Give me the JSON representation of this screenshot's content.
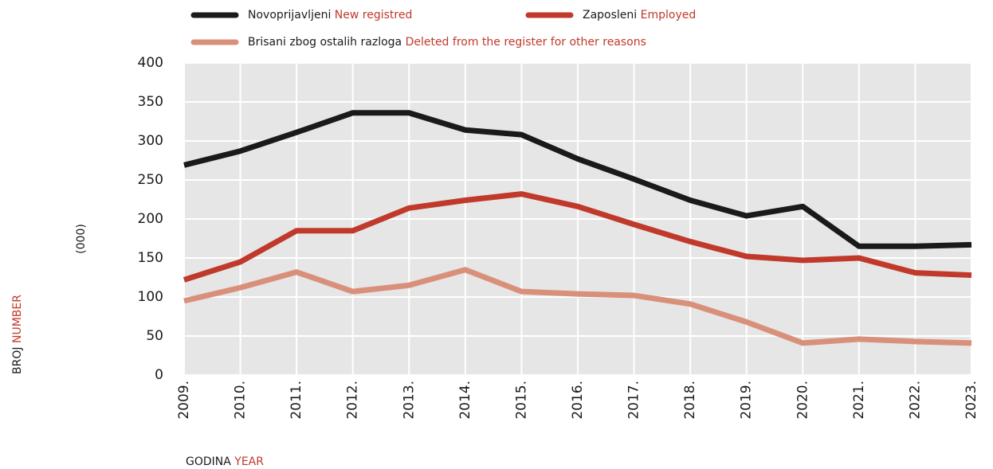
{
  "chart_data": {
    "type": "line",
    "y_label": "BROJ",
    "y_label_en": "NUMBER",
    "y_unit": "(000)",
    "x_label": "GODINA",
    "x_label_en": "YEAR",
    "categories": [
      "2009.",
      "2010.",
      "2011.",
      "2012.",
      "2013.",
      "2014.",
      "2015.",
      "2016.",
      "2017.",
      "2018.",
      "2019.",
      "2020.",
      "2021.",
      "2022.",
      "2023."
    ],
    "series": [
      {
        "name": "Novoprijavljeni",
        "name_en": "New registred",
        "color": "#1a1a1a",
        "values": [
          269,
          287,
          311,
          336,
          336,
          314,
          308,
          277,
          251,
          224,
          204,
          216,
          165,
          165,
          167
        ]
      },
      {
        "name": "Zaposleni",
        "name_en": "Employed",
        "color": "#c0392b",
        "values": [
          122,
          145,
          185,
          185,
          214,
          224,
          232,
          216,
          193,
          171,
          152,
          147,
          150,
          131,
          128
        ]
      },
      {
        "name": "Brisani zbog ostalih razloga",
        "name_en": "Deleted from the register for other reasons",
        "color": "#d9907a",
        "values": [
          95,
          112,
          132,
          107,
          115,
          135,
          107,
          104,
          102,
          91,
          68,
          41,
          46,
          43,
          41
        ]
      }
    ],
    "ylim": [
      0,
      400
    ],
    "yticks": [
      0,
      50,
      100,
      150,
      200,
      250,
      300,
      350,
      400
    ],
    "grid": true
  }
}
